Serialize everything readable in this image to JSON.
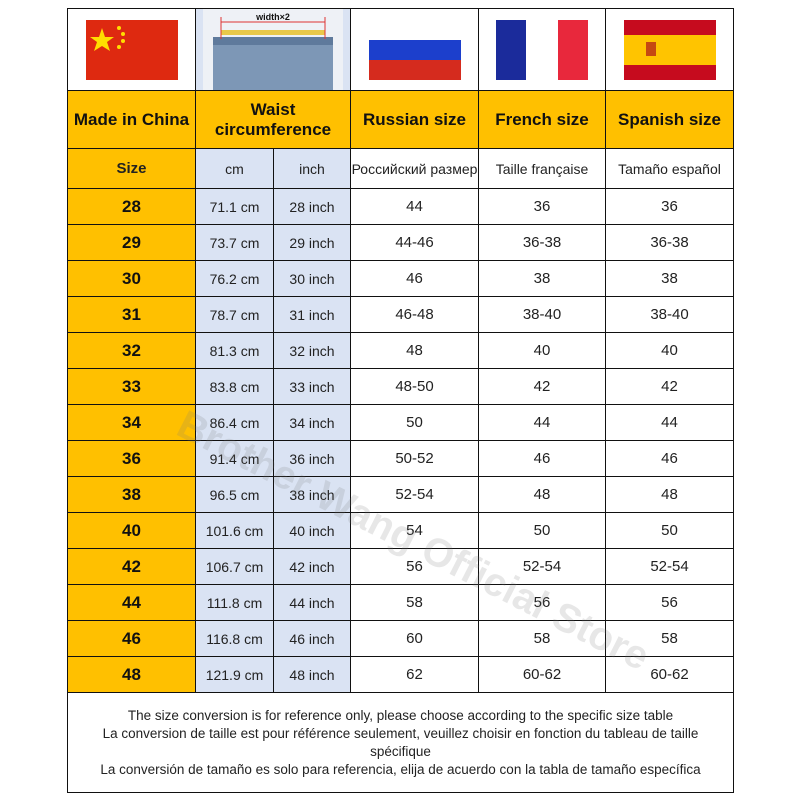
{
  "images": {
    "flags": [
      "china-flag",
      "russia-flag",
      "france-flag",
      "spain-flag"
    ],
    "waist_label": "width×2"
  },
  "headers": {
    "made_in_china": "Made in China",
    "waist": "Waist circumference",
    "russian": "Russian size",
    "french": "French size",
    "spanish": "Spanish size"
  },
  "subheaders": {
    "size": "Size",
    "cm": "cm",
    "inch": "inch",
    "russian": "Российский размер",
    "french": "Taille française",
    "spanish": "Tamaño español"
  },
  "rows": [
    {
      "size": "28",
      "cm": "71.1 cm",
      "inch": "28 inch",
      "ru": "44",
      "fr": "36",
      "es": "36"
    },
    {
      "size": "29",
      "cm": "73.7 cm",
      "inch": "29 inch",
      "ru": "44-46",
      "fr": "36-38",
      "es": "36-38"
    },
    {
      "size": "30",
      "cm": "76.2 cm",
      "inch": "30 inch",
      "ru": "46",
      "fr": "38",
      "es": "38"
    },
    {
      "size": "31",
      "cm": "78.7 cm",
      "inch": "31 inch",
      "ru": "46-48",
      "fr": "38-40",
      "es": "38-40"
    },
    {
      "size": "32",
      "cm": "81.3 cm",
      "inch": "32 inch",
      "ru": "48",
      "fr": "40",
      "es": "40"
    },
    {
      "size": "33",
      "cm": "83.8 cm",
      "inch": "33 inch",
      "ru": "48-50",
      "fr": "42",
      "es": "42"
    },
    {
      "size": "34",
      "cm": "86.4 cm",
      "inch": "34 inch",
      "ru": "50",
      "fr": "44",
      "es": "44"
    },
    {
      "size": "36",
      "cm": "91.4 cm",
      "inch": "36 inch",
      "ru": "50-52",
      "fr": "46",
      "es": "46"
    },
    {
      "size": "38",
      "cm": "96.5 cm",
      "inch": "38 inch",
      "ru": "52-54",
      "fr": "48",
      "es": "48"
    },
    {
      "size": "40",
      "cm": "101.6 cm",
      "inch": "40 inch",
      "ru": "54",
      "fr": "50",
      "es": "50"
    },
    {
      "size": "42",
      "cm": "106.7 cm",
      "inch": "42 inch",
      "ru": "56",
      "fr": "52-54",
      "es": "52-54"
    },
    {
      "size": "44",
      "cm": "111.8 cm",
      "inch": "44 inch",
      "ru": "58",
      "fr": "56",
      "es": "56"
    },
    {
      "size": "46",
      "cm": "116.8 cm",
      "inch": "46 inch",
      "ru": "60",
      "fr": "58",
      "es": "58"
    },
    {
      "size": "48",
      "cm": "121.9 cm",
      "inch": "48 inch",
      "ru": "62",
      "fr": "60-62",
      "es": "60-62"
    }
  ],
  "footer": {
    "line1": "The size conversion is for reference only, please choose according to the specific size table",
    "line2": "La conversion de taille est pour référence seulement, veuillez choisir en fonction du tableau de taille spécifique",
    "line3": "La conversión de tamaño es solo para referencia, elija de acuerdo con la tabla de tamaño específica"
  },
  "watermark": "Brother Wang Official Store",
  "colors": {
    "header": "#FFC000",
    "waist_column": "#DAE3F3"
  }
}
